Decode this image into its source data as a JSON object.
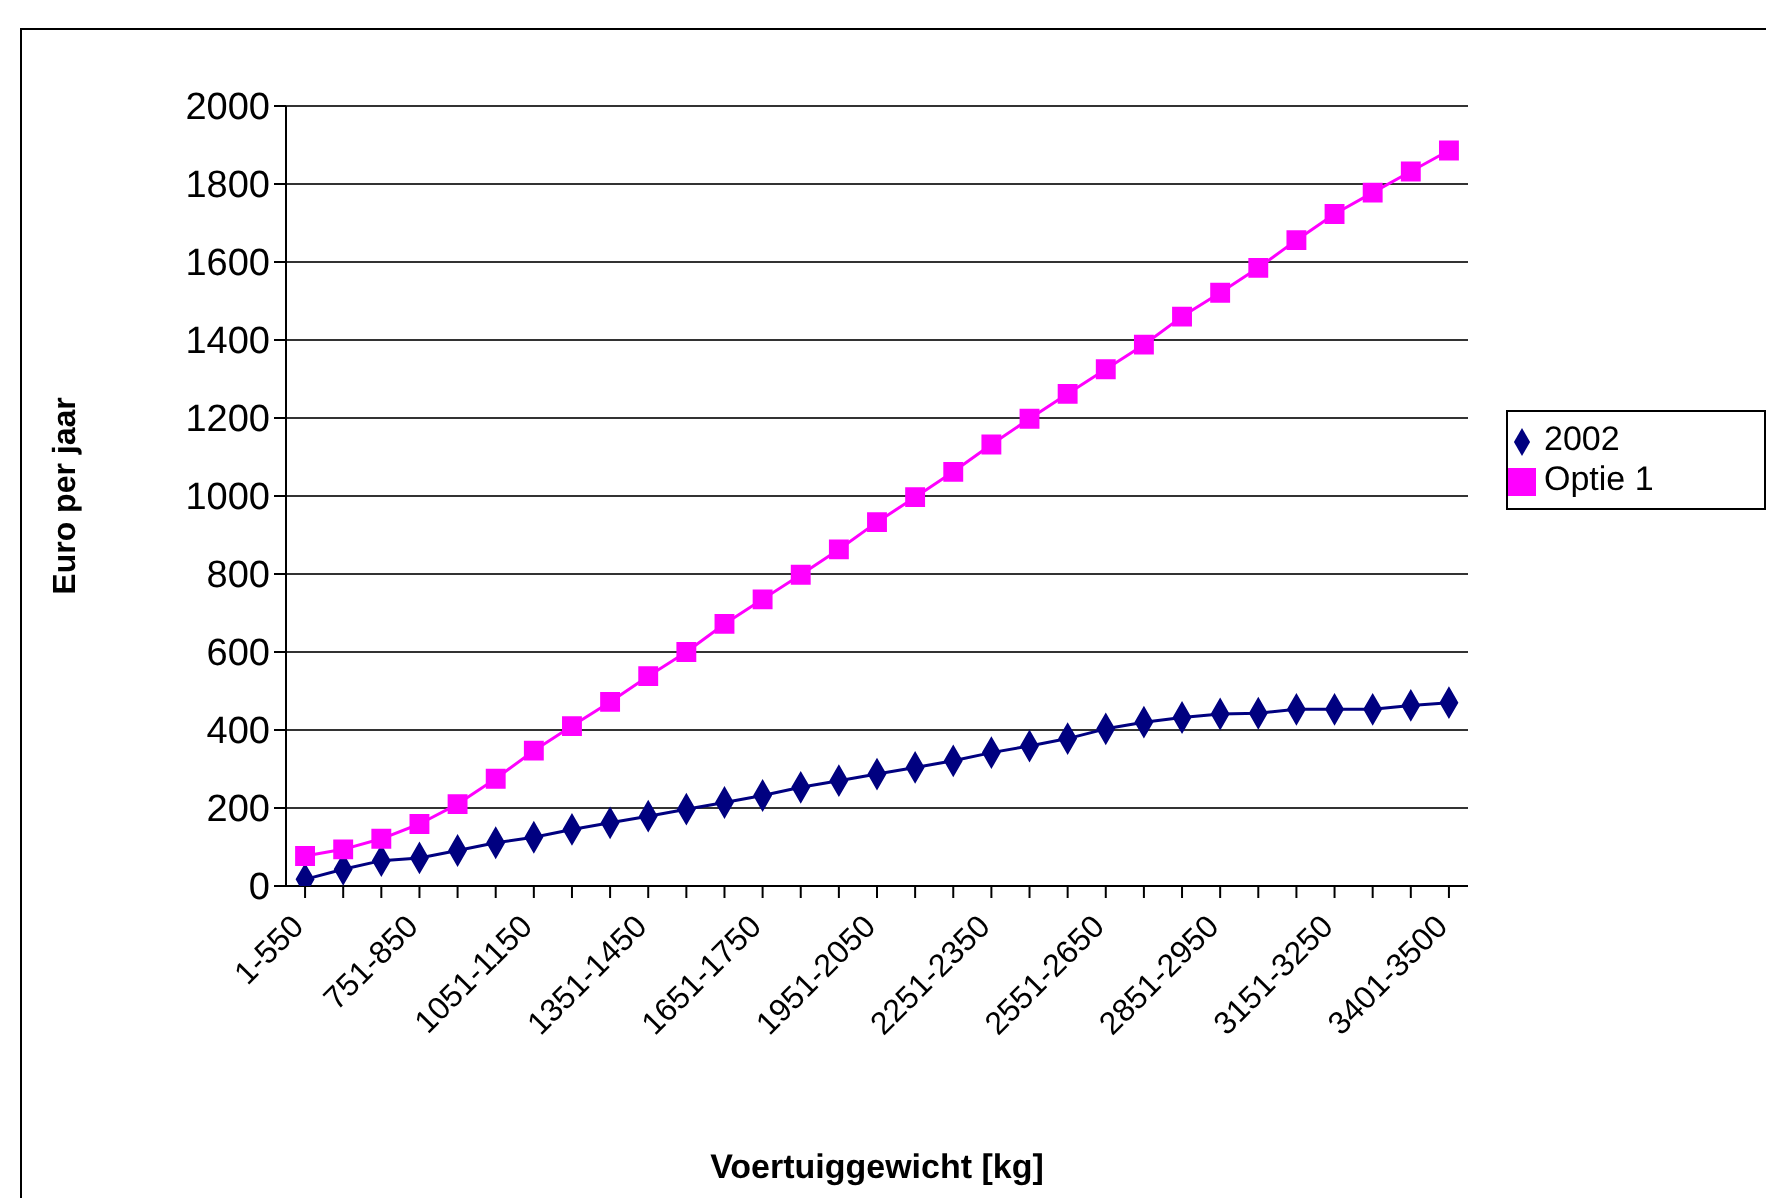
{
  "chart_data": {
    "type": "line",
    "xlabel": "Voertuiggewicht [kg]",
    "ylabel": "Euro per jaar",
    "categories": [
      "1-550",
      null,
      null,
      "751-850",
      null,
      null,
      "1051-1150",
      null,
      null,
      "1351-1450",
      null,
      null,
      "1651-1750",
      null,
      null,
      "1951-2050",
      null,
      null,
      "2251-2350",
      null,
      null,
      "2551-2650",
      null,
      null,
      "2851-2950",
      null,
      null,
      "3151-3250",
      null,
      null,
      "3401-3500"
    ],
    "series": [
      {
        "name": "2002",
        "color": "#000080",
        "marker": "diamond",
        "values": [
          17,
          43,
          65,
          72,
          91,
          111,
          125,
          145,
          162,
          179,
          197,
          214,
          232,
          253,
          270,
          287,
          304,
          321,
          342,
          359,
          378,
          403,
          420,
          432,
          441,
          443,
          453,
          453,
          453,
          463,
          470
        ]
      },
      {
        "name": "Optie 1",
        "color": "#ff00ff",
        "marker": "square",
        "values": [
          77,
          94,
          121,
          159,
          210,
          275,
          347,
          410,
          472,
          538,
          600,
          672,
          735,
          798,
          863,
          933,
          997,
          1062,
          1132,
          1198,
          1262,
          1325,
          1388,
          1460,
          1521,
          1585,
          1656,
          1723,
          1778,
          1832,
          1886
        ]
      }
    ],
    "ylim": [
      0,
      2000
    ],
    "yticks": [
      0,
      200,
      400,
      600,
      800,
      1000,
      1200,
      1400,
      1600,
      1800,
      2000
    ],
    "grid": "y",
    "legend": "right",
    "line_style": "solid"
  }
}
